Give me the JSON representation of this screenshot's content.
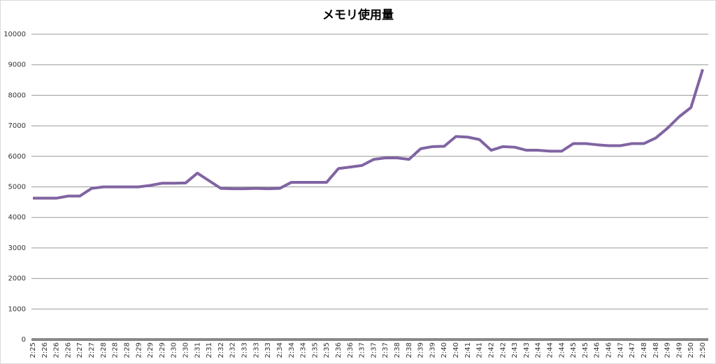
{
  "chart_data": {
    "type": "line",
    "title": "メモリ使用量",
    "categories": [
      "2:25",
      "2:26",
      "2:26",
      "2:26",
      "2:27",
      "2:27",
      "2:28",
      "2:28",
      "2:28",
      "2:29",
      "2:29",
      "2:29",
      "2:30",
      "2:30",
      "2:31",
      "2:31",
      "2:32",
      "2:32",
      "2:33",
      "2:33",
      "2:33",
      "2:34",
      "2:34",
      "2:34",
      "2:35",
      "2:35",
      "2:36",
      "2:36",
      "2:37",
      "2:37",
      "2:37",
      "2:38",
      "2:38",
      "2:39",
      "2:39",
      "2:40",
      "2:40",
      "2:41",
      "2:41",
      "2:42",
      "2:42",
      "2:43",
      "2:43",
      "2:44",
      "2:44",
      "2:44",
      "2:45",
      "2:45",
      "2:46",
      "2:46",
      "2:47",
      "2:47",
      "2:48",
      "2:48",
      "2:49",
      "2:49",
      "2:50",
      "2:50"
    ],
    "series": [
      {
        "color": "#8064a2",
        "values": [
          4630,
          4630,
          4630,
          4700,
          4700,
          4950,
          5000,
          5000,
          5000,
          5000,
          5050,
          5120,
          5120,
          5130,
          5450,
          5200,
          4950,
          4940,
          4940,
          4950,
          4940,
          4950,
          5150,
          5150,
          5150,
          5150,
          5600,
          5650,
          5700,
          5900,
          5950,
          5950,
          5900,
          6250,
          6320,
          6330,
          6650,
          6630,
          6550,
          6200,
          6320,
          6300,
          6200,
          6200,
          6170,
          6170,
          6420,
          6420,
          6380,
          6350,
          6350,
          6420,
          6420,
          6600,
          6920,
          7300,
          7600,
          8850
        ]
      }
    ],
    "ylim": [
      0,
      10000
    ],
    "yticks": [
      0,
      1000,
      2000,
      3000,
      4000,
      5000,
      6000,
      7000,
      8000,
      9000,
      10000
    ],
    "grid": true
  }
}
